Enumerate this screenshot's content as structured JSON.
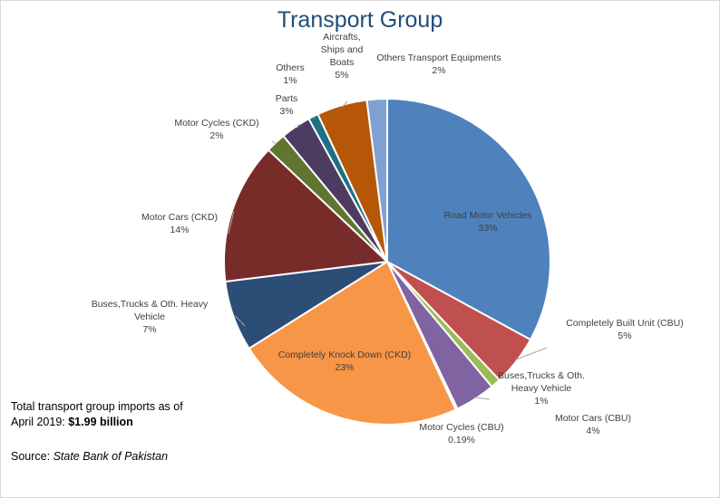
{
  "chart_data": {
    "type": "pie",
    "title": "Transport Group",
    "slices": [
      {
        "name": "Road Motor Vehicles",
        "lines": [
          "Road Motor Vehicles"
        ],
        "value_label": "33%",
        "value": 33,
        "color": "#4f81bd"
      },
      {
        "name": "Completely Built Unit (CBU)",
        "lines": [
          "Completely Built Unit (CBU)"
        ],
        "value_label": "5%",
        "value": 5,
        "color": "#c0504d"
      },
      {
        "name": "Buses,Trucks & Oth. Heavy Vehicle",
        "lines": [
          "Buses,Trucks & Oth.",
          "Heavy Vehicle"
        ],
        "value_label": "1%",
        "value": 1,
        "color": "#9bbb59"
      },
      {
        "name": "Motor Cars (CBU)",
        "lines": [
          "Motor Cars (CBU)"
        ],
        "value_label": "4%",
        "value": 4,
        "color": "#8064a2"
      },
      {
        "name": "Motor Cycles (CBU)",
        "lines": [
          "Motor Cycles (CBU)"
        ],
        "value_label": "0.19%",
        "value": 0.19,
        "color": "#4bacc6"
      },
      {
        "name": "Completely Knock Down (CKD)",
        "lines": [
          "Completely Knock Down (CKD)"
        ],
        "value_label": "23%",
        "value": 23,
        "color": "#f79646"
      },
      {
        "name": "Buses,Trucks & Oth. Heavy Vehicle",
        "lines": [
          "Buses,Trucks & Oth. Heavy",
          "Vehicle"
        ],
        "value_label": "7%",
        "value": 7,
        "color": "#2c4d75"
      },
      {
        "name": "Motor Cars (CKD)",
        "lines": [
          "Motor Cars (CKD)"
        ],
        "value_label": "14%",
        "value": 14,
        "color": "#772c2a"
      },
      {
        "name": "Motor Cycles (CKD)",
        "lines": [
          "Motor Cycles (CKD)"
        ],
        "value_label": "2%",
        "value": 2,
        "color": "#5f7530"
      },
      {
        "name": "Parts",
        "lines": [
          "Parts"
        ],
        "value_label": "3%",
        "value": 3,
        "color": "#4d3b62"
      },
      {
        "name": "Others",
        "lines": [
          "Others"
        ],
        "value_label": "1%",
        "value": 1,
        "color": "#1f7083"
      },
      {
        "name": "Aircrafts, Ships and Boats",
        "lines": [
          "Aircrafts,",
          "Ships and",
          "Boats"
        ],
        "value_label": "5%",
        "value": 5,
        "color": "#b65708"
      },
      {
        "name": "Others Transport Equipments",
        "lines": [
          "Others Transport Equipments"
        ],
        "value_label": "2%",
        "value": 2,
        "color": "#7ea1d2"
      }
    ]
  },
  "notes": {
    "total_prefix_line1": "Total transport group imports as of",
    "total_prefix_line2": "April 2019: ",
    "total_value": "$1.99 billion",
    "source_prefix": "Source: ",
    "source_name": "State Bank of Pakistan"
  }
}
